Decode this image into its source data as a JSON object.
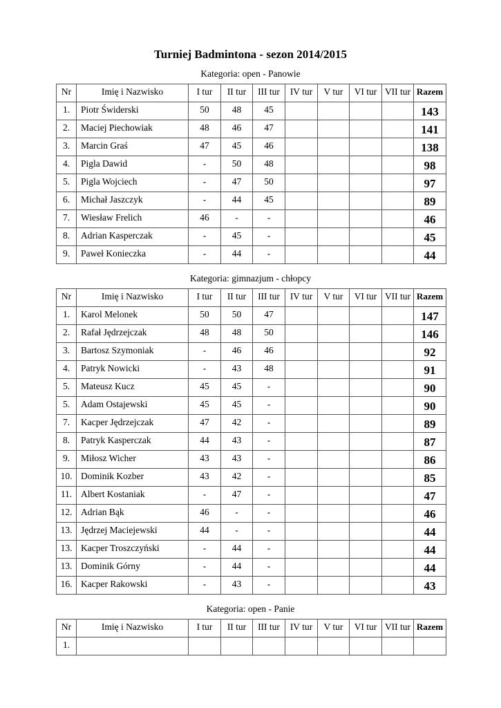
{
  "title": "Turniej Badmintona - sezon 2014/2015",
  "headers": [
    "Nr",
    "Imię i Nazwisko",
    "I tur",
    "II tur",
    "III tur",
    "IV tur",
    "V tur",
    "VI tur",
    "VII tur",
    "Razem"
  ],
  "categories": [
    {
      "label": "Kategoria: open - Panowie",
      "rows": [
        [
          "1.",
          "Piotr Świderski",
          "50",
          "48",
          "45",
          "",
          "",
          "",
          "",
          "143"
        ],
        [
          "2.",
          "Maciej Piechowiak",
          "48",
          "46",
          "47",
          "",
          "",
          "",
          "",
          "141"
        ],
        [
          "3.",
          "Marcin Graś",
          "47",
          "45",
          "46",
          "",
          "",
          "",
          "",
          "138"
        ],
        [
          "4.",
          "Pigla Dawid",
          "-",
          "50",
          "48",
          "",
          "",
          "",
          "",
          "98"
        ],
        [
          "5.",
          "Pigla Wojciech",
          "-",
          "47",
          "50",
          "",
          "",
          "",
          "",
          "97"
        ],
        [
          "6.",
          "Michał Jaszczyk",
          "-",
          "44",
          "45",
          "",
          "",
          "",
          "",
          "89"
        ],
        [
          "7.",
          "Wiesław Frelich",
          "46",
          "-",
          "-",
          "",
          "",
          "",
          "",
          "46"
        ],
        [
          "8.",
          "Adrian Kasperczak",
          "-",
          "45",
          "-",
          "",
          "",
          "",
          "",
          "45"
        ],
        [
          "9.",
          "Paweł Konieczka",
          "-",
          "44",
          "-",
          "",
          "",
          "",
          "",
          "44"
        ]
      ]
    },
    {
      "label": "Kategoria: gimnazjum - chłopcy",
      "rows": [
        [
          "1.",
          "Karol Melonek",
          "50",
          "50",
          "47",
          "",
          "",
          "",
          "",
          "147"
        ],
        [
          "2.",
          "Rafał Jędrzejczak",
          "48",
          "48",
          "50",
          "",
          "",
          "",
          "",
          "146"
        ],
        [
          "3.",
          "Bartosz Szymoniak",
          "-",
          "46",
          "46",
          "",
          "",
          "",
          "",
          "92"
        ],
        [
          "4.",
          "Patryk Nowicki",
          "-",
          "43",
          "48",
          "",
          "",
          "",
          "",
          "91"
        ],
        [
          "5.",
          "Mateusz Kucz",
          "45",
          "45",
          "-",
          "",
          "",
          "",
          "",
          "90"
        ],
        [
          "5.",
          "Adam Ostajewski",
          "45",
          "45",
          "-",
          "",
          "",
          "",
          "",
          "90"
        ],
        [
          "7.",
          "Kacper Jędrzejczak",
          "47",
          "42",
          "-",
          "",
          "",
          "",
          "",
          "89"
        ],
        [
          "8.",
          "Patryk Kasperczak",
          "44",
          "43",
          "-",
          "",
          "",
          "",
          "",
          "87"
        ],
        [
          "9.",
          "Miłosz Wicher",
          "43",
          "43",
          "-",
          "",
          "",
          "",
          "",
          "86"
        ],
        [
          "10.",
          "Dominik Kozber",
          "43",
          "42",
          "-",
          "",
          "",
          "",
          "",
          "85"
        ],
        [
          "11.",
          "Albert Kostaniak",
          "-",
          "47",
          "-",
          "",
          "",
          "",
          "",
          "47"
        ],
        [
          "12.",
          "Adrian Bąk",
          "46",
          "-",
          "-",
          "",
          "",
          "",
          "",
          "46"
        ],
        [
          "13.",
          "Jędrzej Maciejewski",
          "44",
          "-",
          "-",
          "",
          "",
          "",
          "",
          "44"
        ],
        [
          "13.",
          "Kacper Troszczyński",
          "-",
          "44",
          "-",
          "",
          "",
          "",
          "",
          "44"
        ],
        [
          "13.",
          "Dominik Górny",
          "-",
          "44",
          "-",
          "",
          "",
          "",
          "",
          "44"
        ],
        [
          "16.",
          "Kacper Rakowski",
          "-",
          "43",
          "-",
          "",
          "",
          "",
          "",
          "43"
        ]
      ]
    },
    {
      "label": "Kategoria: open - Panie",
      "rows": [
        [
          "1.",
          "",
          "",
          "",
          "",
          "",
          "",
          "",
          "",
          ""
        ]
      ]
    }
  ]
}
